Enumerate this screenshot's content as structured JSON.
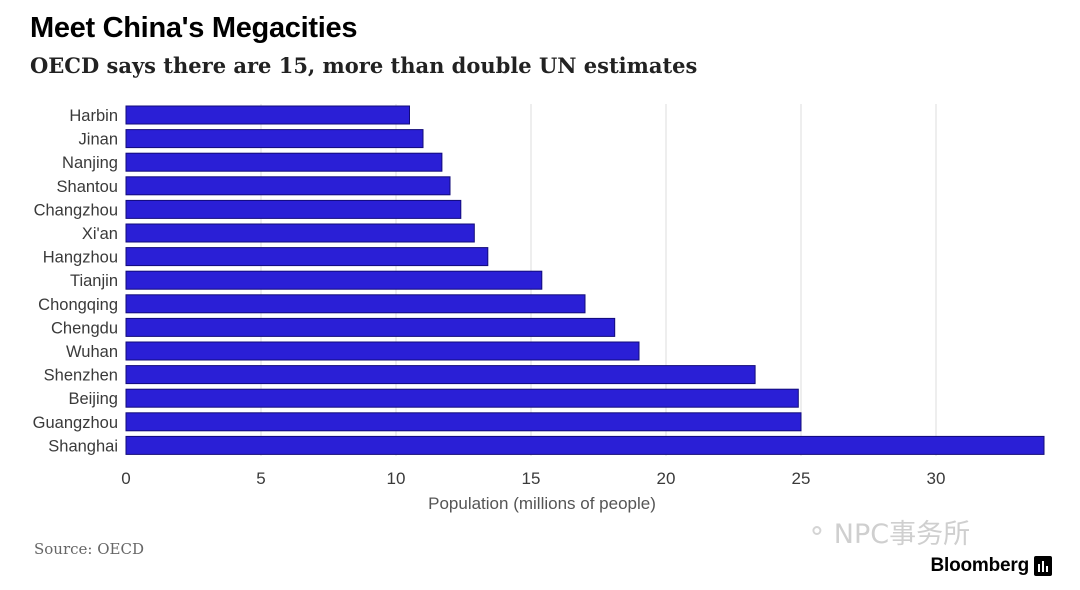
{
  "header": {
    "title": "Meet China's Megacities",
    "subtitle": "OECD says there are 15, more than double UN estimates"
  },
  "footer": {
    "source": "Source: OECD",
    "watermark": "NPC事务所",
    "brand": "Bloomberg",
    "watermark_icon": "wechat-icon",
    "brand_icon": "bloomberg-bars-icon"
  },
  "colors": {
    "bar": "#2a1fd6",
    "bar_outline": "#120b7a",
    "grid": "#dedede",
    "text": "#3a3a3a"
  },
  "chart_data": {
    "type": "bar",
    "orientation": "horizontal",
    "title": "Meet China's Megacities",
    "subtitle": "OECD says there are 15, more than double UN estimates",
    "xlabel": "Population (millions of people)",
    "ylabel": "",
    "categories": [
      "Harbin",
      "Jinan",
      "Nanjing",
      "Shantou",
      "Changzhou",
      "Xi'an",
      "Hangzhou",
      "Tianjin",
      "Chongqing",
      "Chengdu",
      "Wuhan",
      "Shenzhen",
      "Beijing",
      "Guangzhou",
      "Shanghai"
    ],
    "values": [
      10.5,
      11.0,
      11.7,
      12.0,
      12.4,
      12.9,
      13.4,
      15.4,
      17.0,
      18.1,
      19.0,
      23.3,
      24.9,
      25.0,
      34.0
    ],
    "xlim": [
      0,
      34
    ],
    "xticks": [
      0,
      5,
      10,
      15,
      20,
      25,
      30
    ],
    "grid": "vertical",
    "legend": "none"
  }
}
